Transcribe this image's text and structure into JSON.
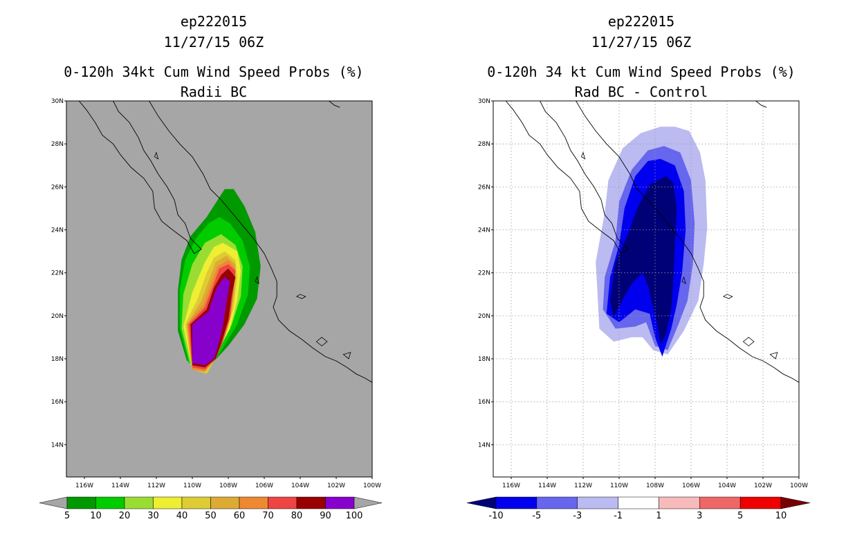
{
  "chart_data": [
    {
      "type": "heatmap",
      "title_lines": [
        "ep222015",
        "11/27/15 06Z",
        "0-120h 34kt Cum Wind Speed Probs (%)",
        "Radii BC"
      ],
      "xlabel": "",
      "ylabel": "",
      "x_ticks": [
        "116W",
        "114W",
        "112W",
        "110W",
        "108W",
        "106W",
        "104W",
        "102W",
        "100W"
      ],
      "y_ticks": [
        "30N",
        "28N",
        "26N",
        "24N",
        "22N",
        "20N",
        "18N",
        "16N",
        "14N"
      ],
      "xlim": [
        -117,
        -100
      ],
      "ylim": [
        12.5,
        30
      ],
      "grid": false,
      "background_color": "#a6a6a6",
      "colorbar": {
        "labels": [
          "5",
          "10",
          "20",
          "30",
          "40",
          "50",
          "60",
          "70",
          "80",
          "90",
          "100"
        ],
        "colors": [
          "#009900",
          "#00cc00",
          "#99dd33",
          "#eeee33",
          "#ddcc33",
          "#ddaa33",
          "#ee8833",
          "#ee4444",
          "#990000",
          "#8800cc"
        ],
        "end_color": "#a6a6a6"
      },
      "contour_levels": [
        {
          "level": 5,
          "color": "#009900",
          "polygon": [
            [
              -108.2,
              25.9
            ],
            [
              -107.7,
              25.9
            ],
            [
              -107.1,
              25.1
            ],
            [
              -106.5,
              23.9
            ],
            [
              -106.2,
              22.3
            ],
            [
              -106.4,
              20.8
            ],
            [
              -107.1,
              19.6
            ],
            [
              -108.0,
              18.6
            ],
            [
              -109.0,
              17.7
            ],
            [
              -110.3,
              17.9
            ],
            [
              -110.8,
              19.3
            ],
            [
              -110.8,
              21.2
            ],
            [
              -110.6,
              22.6
            ],
            [
              -110.1,
              23.7
            ],
            [
              -109.2,
              24.6
            ]
          ]
        },
        {
          "level": 10,
          "color": "#00cc00",
          "polygon": [
            [
              -108.5,
              24.6
            ],
            [
              -107.9,
              24.3
            ],
            [
              -107.2,
              23.5
            ],
            [
              -106.8,
              22.3
            ],
            [
              -106.9,
              21.0
            ],
            [
              -107.5,
              19.6
            ],
            [
              -108.3,
              18.5
            ],
            [
              -109.1,
              17.5
            ],
            [
              -110.2,
              17.8
            ],
            [
              -110.7,
              19.4
            ],
            [
              -110.7,
              21.2
            ],
            [
              -110.4,
              22.6
            ],
            [
              -109.8,
              23.6
            ],
            [
              -109.1,
              24.3
            ]
          ]
        },
        {
          "level": 20,
          "color": "#99dd33",
          "polygon": [
            [
              -108.4,
              23.8
            ],
            [
              -107.6,
              23.3
            ],
            [
              -107.2,
              22.3
            ],
            [
              -107.3,
              20.9
            ],
            [
              -107.8,
              19.6
            ],
            [
              -108.5,
              18.5
            ],
            [
              -109.1,
              17.4
            ],
            [
              -110.1,
              17.7
            ],
            [
              -110.6,
              19.4
            ],
            [
              -110.5,
              21.0
            ],
            [
              -110.0,
              22.4
            ],
            [
              -109.3,
              23.4
            ]
          ]
        },
        {
          "level": 30,
          "color": "#eeee33",
          "polygon": [
            [
              -108.3,
              23.4
            ],
            [
              -107.5,
              23.0
            ],
            [
              -107.3,
              22.1
            ],
            [
              -107.5,
              20.7
            ],
            [
              -107.9,
              19.4
            ],
            [
              -108.6,
              18.3
            ],
            [
              -109.2,
              17.3
            ],
            [
              -110.0,
              17.6
            ],
            [
              -110.5,
              19.5
            ],
            [
              -110.0,
              21.1
            ],
            [
              -109.3,
              22.5
            ],
            [
              -108.8,
              23.2
            ]
          ]
        },
        {
          "level": 40,
          "color": "#ddcc33",
          "polygon": [
            [
              -108.2,
              23.0
            ],
            [
              -107.6,
              22.6
            ],
            [
              -107.5,
              21.8
            ],
            [
              -107.7,
              20.4
            ],
            [
              -108.1,
              19.2
            ],
            [
              -108.6,
              18.2
            ],
            [
              -109.2,
              17.3
            ],
            [
              -110.0,
              17.5
            ],
            [
              -110.4,
              19.6
            ],
            [
              -109.7,
              20.8
            ],
            [
              -109.2,
              22.0
            ],
            [
              -108.8,
              22.7
            ]
          ]
        },
        {
          "level": 50,
          "color": "#ddaa33",
          "polygon": [
            [
              -108.1,
              22.8
            ],
            [
              -107.6,
              22.4
            ],
            [
              -107.6,
              21.5
            ],
            [
              -107.8,
              20.2
            ],
            [
              -108.2,
              19.0
            ],
            [
              -108.7,
              18.1
            ],
            [
              -109.3,
              17.4
            ],
            [
              -110.0,
              17.5
            ],
            [
              -110.3,
              19.6
            ],
            [
              -109.5,
              20.7
            ],
            [
              -109.0,
              21.8
            ],
            [
              -108.7,
              22.5
            ]
          ]
        },
        {
          "level": 60,
          "color": "#ee8833",
          "polygon": [
            [
              -108.0,
              22.6
            ],
            [
              -107.6,
              22.2
            ],
            [
              -107.7,
              21.4
            ],
            [
              -107.9,
              20.0
            ],
            [
              -108.3,
              18.9
            ],
            [
              -108.7,
              18.0
            ],
            [
              -109.3,
              17.4
            ],
            [
              -110.0,
              17.5
            ],
            [
              -110.3,
              19.6
            ],
            [
              -109.4,
              20.5
            ],
            [
              -108.9,
              21.6
            ],
            [
              -108.6,
              22.3
            ]
          ]
        },
        {
          "level": 70,
          "color": "#ee4444",
          "polygon": [
            [
              -108.0,
              22.4
            ],
            [
              -107.6,
              22.1
            ],
            [
              -107.7,
              21.3
            ],
            [
              -107.9,
              19.9
            ],
            [
              -108.3,
              18.8
            ],
            [
              -108.7,
              18.0
            ],
            [
              -109.3,
              17.5
            ],
            [
              -110.0,
              17.6
            ],
            [
              -110.2,
              19.6
            ],
            [
              -109.3,
              20.4
            ],
            [
              -108.8,
              21.5
            ],
            [
              -108.5,
              22.2
            ]
          ]
        },
        {
          "level": 80,
          "color": "#990000",
          "polygon": [
            [
              -108.0,
              22.2
            ],
            [
              -107.6,
              21.8
            ],
            [
              -107.8,
              21.0
            ],
            [
              -108.0,
              19.8
            ],
            [
              -108.4,
              18.7
            ],
            [
              -108.7,
              18.0
            ],
            [
              -109.3,
              17.6
            ],
            [
              -110.0,
              17.7
            ],
            [
              -110.1,
              19.6
            ],
            [
              -109.2,
              20.3
            ],
            [
              -108.8,
              21.3
            ],
            [
              -108.4,
              21.9
            ]
          ]
        },
        {
          "level": 90,
          "color": "#8800cc",
          "polygon": [
            [
              -108.2,
              21.8
            ],
            [
              -107.9,
              21.6
            ],
            [
              -108.1,
              20.6
            ],
            [
              -108.3,
              19.5
            ],
            [
              -108.6,
              18.5
            ],
            [
              -108.8,
              18.0
            ],
            [
              -109.3,
              17.7
            ],
            [
              -110.0,
              17.8
            ],
            [
              -110.0,
              19.6
            ],
            [
              -109.1,
              20.2
            ],
            [
              -108.7,
              21.2
            ],
            [
              -108.4,
              21.6
            ]
          ]
        }
      ]
    },
    {
      "type": "heatmap",
      "title_lines": [
        "ep222015",
        "11/27/15 06Z",
        "0-120h 34 kt Cum Wind Speed Probs (%)",
        "Rad BC - Control"
      ],
      "xlabel": "",
      "ylabel": "",
      "x_ticks": [
        "116W",
        "114W",
        "112W",
        "110W",
        "108W",
        "106W",
        "104W",
        "102W",
        "100W"
      ],
      "y_ticks": [
        "30N",
        "28N",
        "26N",
        "24N",
        "22N",
        "20N",
        "18N",
        "16N",
        "14N"
      ],
      "xlim": [
        -117,
        -100
      ],
      "ylim": [
        12.5,
        30
      ],
      "grid": true,
      "background_color": "#ffffff",
      "colorbar": {
        "labels": [
          "-10",
          "-5",
          "-3",
          "-1",
          "1",
          "3",
          "5",
          "10"
        ],
        "colors": [
          "#0000ee",
          "#6666ee",
          "#bbbbf2",
          "#ffffff",
          "#f8bbbb",
          "#ee6666",
          "#ee0000"
        ],
        "left_end_color": "#000077",
        "right_end_color": "#770000"
      },
      "contour_levels": [
        {
          "level": -1,
          "color": "#bbbbf2",
          "polygon": [
            [
              -106.9,
              28.8
            ],
            [
              -106.1,
              28.6
            ],
            [
              -105.5,
              27.6
            ],
            [
              -105.2,
              26.3
            ],
            [
              -105.1,
              24.1
            ],
            [
              -105.3,
              22.4
            ],
            [
              -105.6,
              20.7
            ],
            [
              -106.4,
              19.3
            ],
            [
              -107.3,
              18.2
            ],
            [
              -108.1,
              18.4
            ],
            [
              -108.7,
              19.0
            ],
            [
              -109.3,
              19.0
            ],
            [
              -110.3,
              18.8
            ],
            [
              -111.1,
              19.4
            ],
            [
              -111.2,
              21.0
            ],
            [
              -111.3,
              22.5
            ],
            [
              -110.8,
              24.8
            ],
            [
              -110.6,
              26.3
            ],
            [
              -109.8,
              27.8
            ],
            [
              -108.8,
              28.5
            ],
            [
              -107.7,
              28.8
            ]
          ]
        },
        {
          "level": -3,
          "color": "#6666ee",
          "polygon": [
            [
              -107.5,
              27.9
            ],
            [
              -106.6,
              27.6
            ],
            [
              -106.0,
              26.3
            ],
            [
              -105.8,
              24.3
            ],
            [
              -105.9,
              22.4
            ],
            [
              -106.2,
              20.7
            ],
            [
              -106.7,
              19.6
            ],
            [
              -107.3,
              18.4
            ],
            [
              -108.0,
              18.6
            ],
            [
              -108.5,
              19.7
            ],
            [
              -109.1,
              19.5
            ],
            [
              -110.2,
              19.4
            ],
            [
              -110.9,
              20.3
            ],
            [
              -110.8,
              21.8
            ],
            [
              -110.2,
              23.5
            ],
            [
              -110.0,
              25.3
            ],
            [
              -109.3,
              26.8
            ],
            [
              -108.4,
              27.7
            ]
          ]
        },
        {
          "level": -5,
          "color": "#0000ee",
          "polygon": [
            [
              -107.7,
              27.3
            ],
            [
              -106.9,
              27.0
            ],
            [
              -106.4,
              25.8
            ],
            [
              -106.3,
              24.0
            ],
            [
              -106.5,
              22.0
            ],
            [
              -106.8,
              20.5
            ],
            [
              -107.1,
              19.4
            ],
            [
              -107.6,
              18.1
            ],
            [
              -108.0,
              19.0
            ],
            [
              -108.3,
              20.1
            ],
            [
              -109.1,
              20.3
            ],
            [
              -110.0,
              19.7
            ],
            [
              -110.7,
              20.1
            ],
            [
              -110.5,
              21.8
            ],
            [
              -110.0,
              23.3
            ],
            [
              -109.7,
              25.0
            ],
            [
              -109.1,
              26.5
            ],
            [
              -108.4,
              27.2
            ]
          ]
        },
        {
          "level": -10,
          "color": "#000077",
          "polygon": [
            [
              -107.4,
              26.5
            ],
            [
              -107.0,
              26.2
            ],
            [
              -106.8,
              25.0
            ],
            [
              -106.9,
              23.3
            ],
            [
              -107.0,
              21.5
            ],
            [
              -107.1,
              20.3
            ],
            [
              -107.4,
              19.1
            ],
            [
              -107.7,
              18.7
            ],
            [
              -107.9,
              19.7
            ],
            [
              -108.4,
              21.4
            ],
            [
              -108.7,
              22.0
            ],
            [
              -109.3,
              21.5
            ],
            [
              -109.9,
              20.6
            ],
            [
              -110.3,
              19.9
            ],
            [
              -110.5,
              20.7
            ],
            [
              -110.2,
              22.5
            ],
            [
              -109.5,
              23.8
            ],
            [
              -109.0,
              25.0
            ],
            [
              -108.3,
              26.1
            ]
          ]
        }
      ]
    }
  ]
}
